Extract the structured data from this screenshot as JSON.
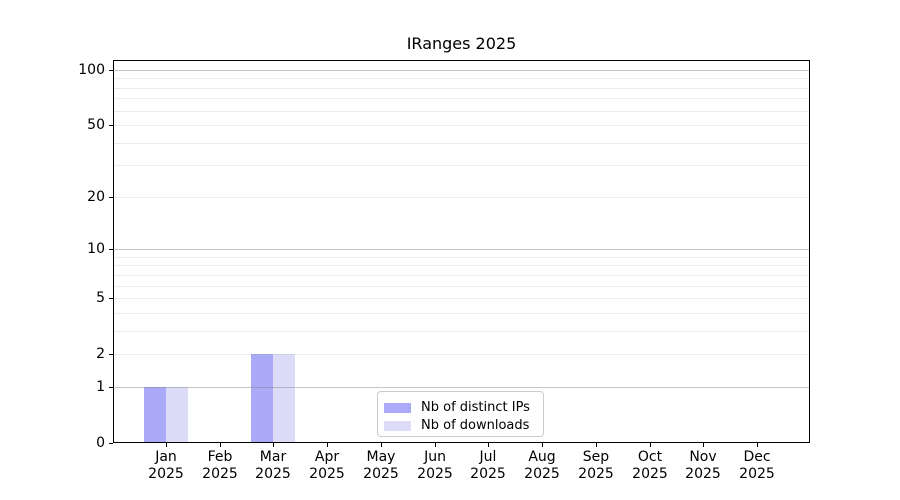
{
  "chart_data": {
    "type": "bar",
    "title": "IRanges 2025",
    "categories": [
      "Jan 2025",
      "Feb 2025",
      "Mar 2025",
      "Apr 2025",
      "May 2025",
      "Jun 2025",
      "Jul 2025",
      "Aug 2025",
      "Sep 2025",
      "Oct 2025",
      "Nov 2025",
      "Dec 2025"
    ],
    "series": [
      {
        "name": "Nb of distinct IPs",
        "color": "#aaaaf8",
        "values": [
          1,
          0,
          2,
          0,
          0,
          0,
          0,
          0,
          0,
          0,
          0,
          0
        ]
      },
      {
        "name": "Nb of downloads",
        "color": "#dcdcf8",
        "values": [
          1,
          0,
          2,
          0,
          0,
          0,
          0,
          0,
          0,
          0,
          0,
          0
        ]
      }
    ],
    "y_axis": {
      "scale": "log1p",
      "lim": [
        0,
        113
      ],
      "tick_labels": [
        0,
        1,
        2,
        5,
        10,
        20,
        50,
        100
      ],
      "major_grid_values": [
        1,
        10,
        100
      ],
      "minor_grid_values": [
        2,
        3,
        4,
        5,
        6,
        7,
        8,
        9,
        20,
        30,
        40,
        50,
        60,
        70,
        80,
        90
      ]
    },
    "legend": {
      "position": "lower center",
      "entries": [
        "Nb of distinct IPs",
        "Nb of downloads"
      ]
    },
    "grid": "both",
    "background": "#ffffff"
  },
  "styles": {
    "grid_major_color": "rgba(128,128,128,0.45)",
    "grid_minor_color": "rgba(128,128,128,0.15)",
    "spine_color": "#000000",
    "text_color": "#000000",
    "legend_border_color": "#cccccc"
  }
}
